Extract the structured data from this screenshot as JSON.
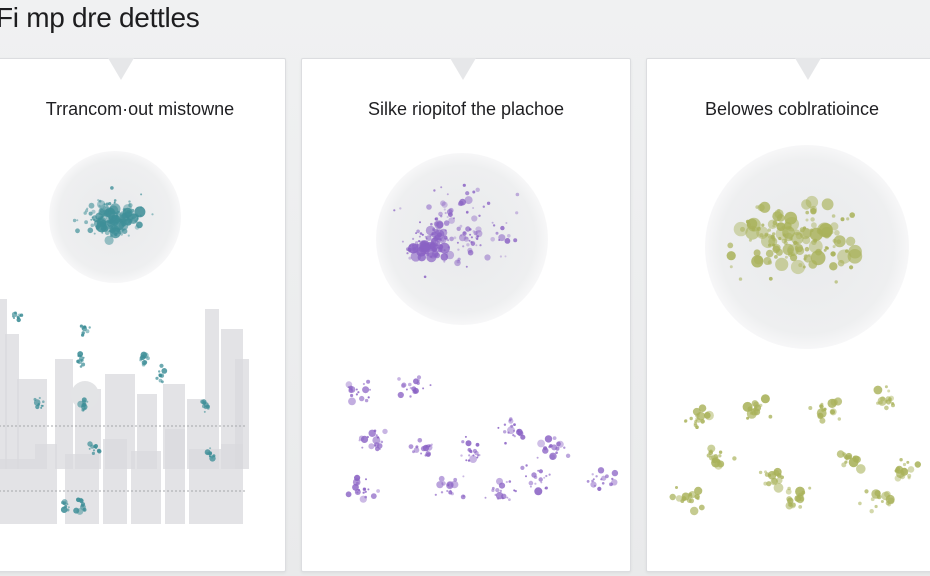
{
  "page": {
    "title": "Fi mp dre dettles"
  },
  "panels": [
    {
      "title": "Trrancom·out mistowne",
      "color": "#3f8f98",
      "icon": "scatter-cluster-city"
    },
    {
      "title": "Silke riopitof the plachoe",
      "color": "#8a62c4",
      "icon": "scatter-cluster-purple"
    },
    {
      "title": "Belowes coblratioince",
      "color": "#a9b25a",
      "icon": "scatter-cluster-olive"
    }
  ]
}
